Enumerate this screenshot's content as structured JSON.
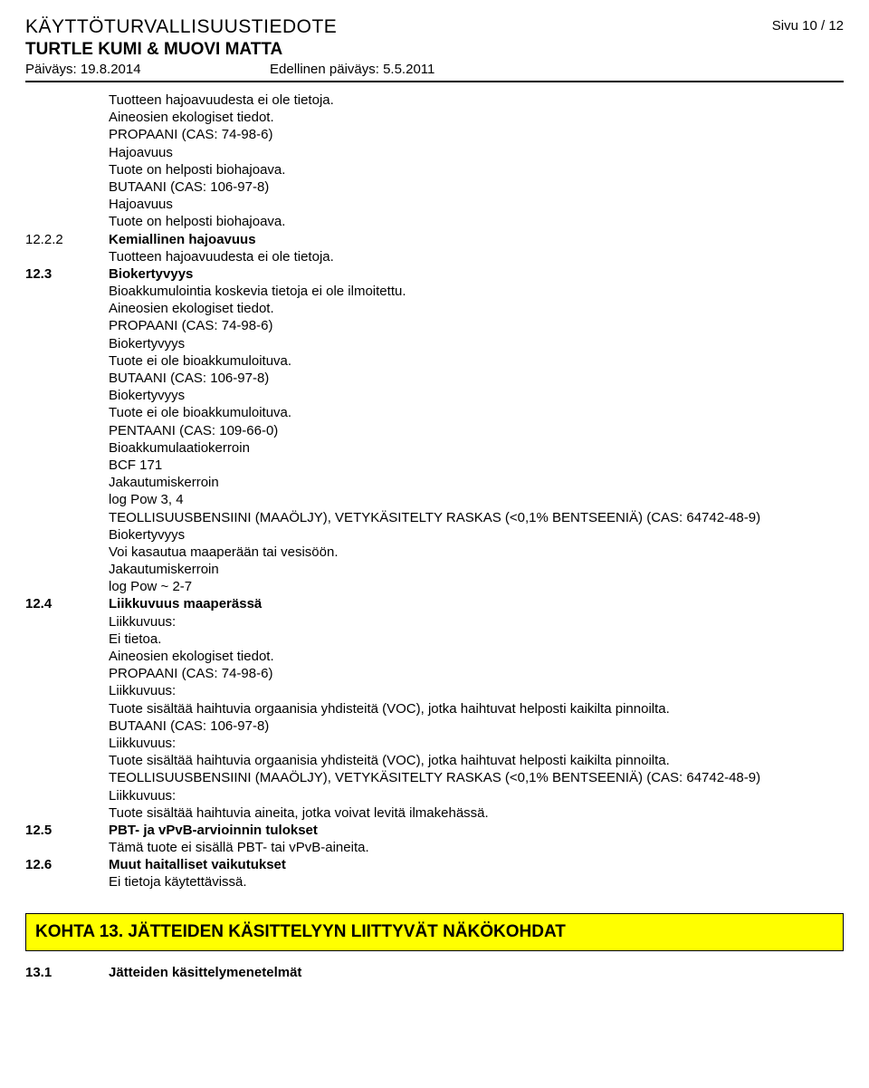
{
  "header": {
    "doc_title": "KÄYTTÖTURVALLISUUSTIEDOTE",
    "product_name": "TURTLE KUMI & MUOVI MATTA",
    "date_label": "Päiväys: 19.8.2014",
    "prev_date_label": "Edellinen päiväys: 5.5.2011",
    "page_label": "Sivu 10 / 12"
  },
  "intro_lines": [
    "Tuotteen hajoavuudesta ei ole tietoja.",
    "Aineosien ekologiset tiedot.",
    "PROPAANI (CAS: 74-98-6)",
    "Hajoavuus",
    "Tuote on helposti biohajoava.",
    "BUTAANI (CAS: 106-97-8)",
    "Hajoavuus",
    "Tuote on helposti biohajoava."
  ],
  "s12_2_2": {
    "num": "12.2.2",
    "heading": "Kemiallinen hajoavuus",
    "lines": [
      "Tuotteen hajoavuudesta ei ole tietoja."
    ]
  },
  "s12_3": {
    "num": "12.3",
    "heading": "Biokertyvyys",
    "lines": [
      "Bioakkumulointia koskevia tietoja ei ole ilmoitettu.",
      "Aineosien ekologiset tiedot.",
      "PROPAANI (CAS: 74-98-6)",
      "Biokertyvyys",
      "Tuote ei ole bioakkumuloituva.",
      "BUTAANI (CAS: 106-97-8)",
      "Biokertyvyys",
      "Tuote ei ole bioakkumuloituva.",
      "PENTAANI (CAS: 109-66-0)",
      "Bioakkumulaatiokerroin",
      "BCF 171",
      "Jakautumiskerroin",
      "log Pow 3, 4",
      "TEOLLISUUSBENSIINI (MAAÖLJY), VETYKÄSITELTY RASKAS (<0,1% BENTSEENIÄ) (CAS: 64742-48-9)",
      "Biokertyvyys",
      "Voi kasautua maaperään tai vesisöön.",
      "Jakautumiskerroin",
      "log Pow ~ 2-7"
    ]
  },
  "s12_4": {
    "num": "12.4",
    "heading": "Liikkuvuus maaperässä",
    "lines": [
      "Liikkuvuus:",
      "Ei tietoa.",
      "Aineosien ekologiset tiedot.",
      "PROPAANI (CAS: 74-98-6)",
      "Liikkuvuus:",
      "Tuote sisältää haihtuvia orgaanisia yhdisteitä (VOC), jotka haihtuvat helposti kaikilta pinnoilta.",
      "BUTAANI (CAS: 106-97-8)",
      "Liikkuvuus:",
      "Tuote sisältää haihtuvia orgaanisia yhdisteitä (VOC), jotka haihtuvat helposti kaikilta pinnoilta.",
      "TEOLLISUUSBENSIINI (MAAÖLJY), VETYKÄSITELTY RASKAS (<0,1% BENTSEENIÄ) (CAS: 64742-48-9)",
      "Liikkuvuus:",
      "Tuote sisältää haihtuvia aineita, jotka voivat levitä ilmakehässä."
    ]
  },
  "s12_5": {
    "num": "12.5",
    "heading": "PBT- ja vPvB-arvioinnin tulokset",
    "lines": [
      "Tämä tuote ei sisällä PBT- tai vPvB-aineita."
    ]
  },
  "s12_6": {
    "num": "12.6",
    "heading": "Muut haitalliset vaikutukset",
    "lines": [
      "Ei tietoja käytettävissä."
    ]
  },
  "kohta13": {
    "bar": "KOHTA 13. JÄTTEIDEN KÄSITTELYYN LIITTYVÄT NÄKÖKOHDAT"
  },
  "s13_1": {
    "num": "13.1",
    "heading": "Jätteiden käsittelymenetelmät"
  },
  "colors": {
    "bar_bg": "#ffff00",
    "text": "#000000",
    "page_bg": "#ffffff",
    "rule": "#000000"
  }
}
